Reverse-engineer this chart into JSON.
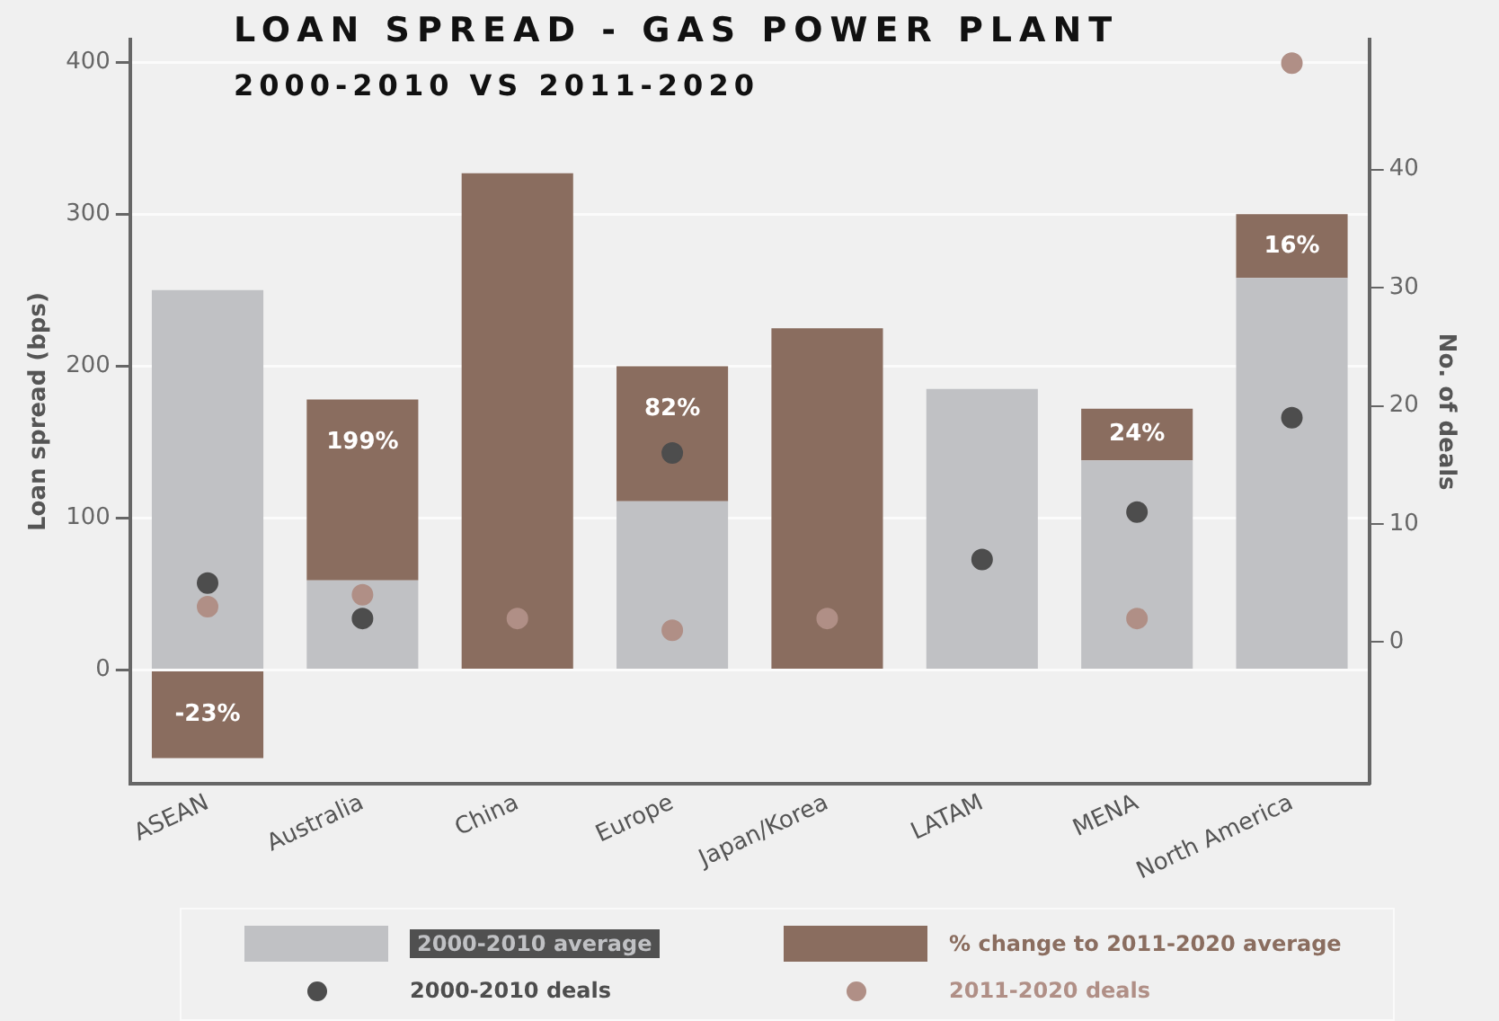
{
  "chart_data": {
    "type": "bar",
    "title": "LOAN SPREAD - GAS POWER PLANT",
    "subtitle": "2000-2010 VS 2011-2020",
    "ylabel": "Loan spread (bps)",
    "y2label": "No. of deals",
    "categories": [
      "ASEAN",
      "Australia",
      "China",
      "Europe",
      "Japan/Korea",
      "LATAM",
      "MENA",
      "North America"
    ],
    "stacked": true,
    "series": [
      {
        "name": "2000-2010 average",
        "color": "#c0c1c4",
        "values": [
          250,
          59,
          null,
          111,
          null,
          185,
          138,
          258
        ]
      },
      {
        "name": "% change to 2011-2020 average",
        "color": "#8a6d5f",
        "values": [
          -58,
          119,
          327,
          89,
          225,
          null,
          34,
          42
        ]
      },
      {
        "name": "2000-2010 deals",
        "type": "scatter",
        "axis": "y2",
        "color": "#4d4d4d",
        "values": [
          5,
          2,
          null,
          16,
          null,
          7,
          11,
          19
        ]
      },
      {
        "name": "2011-2020 deals",
        "type": "scatter",
        "axis": "y2",
        "color": "#b08f86",
        "values": [
          3,
          4,
          2,
          1,
          2,
          null,
          2,
          49
        ]
      }
    ],
    "annotations": [
      {
        "text": "-23%",
        "x": "ASEAN",
        "y": -58
      },
      {
        "text": "199%",
        "x": "Australia",
        "y": 178
      },
      {
        "text": "82%",
        "x": "Europe",
        "y": 200
      },
      {
        "text": "24%",
        "x": "MENA",
        "y": 172
      },
      {
        "text": "16%",
        "x": "North America",
        "y": 300
      }
    ],
    "ylim": [
      -75,
      415
    ],
    "yticks": [
      0,
      100,
      200,
      300,
      400
    ],
    "y2lim": [
      -12,
      51
    ],
    "y2ticks": [
      0,
      10,
      20,
      30,
      40
    ],
    "grid": "y",
    "legend": "bottom",
    "marker": "circle"
  }
}
